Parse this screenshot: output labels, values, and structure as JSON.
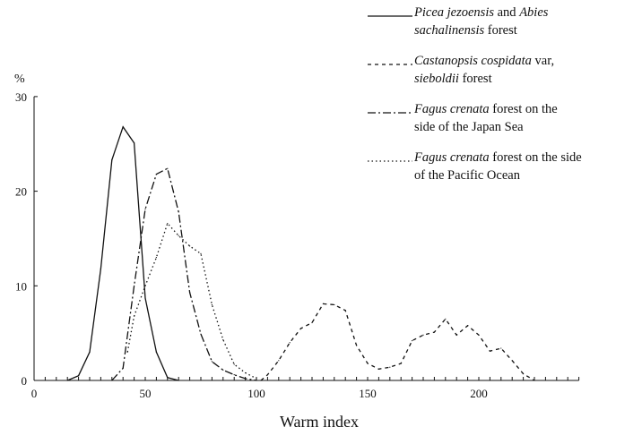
{
  "chart_data": {
    "type": "line",
    "xlabel": "Warm index",
    "ylabel": "%",
    "xlim": [
      0,
      245
    ],
    "ylim": [
      0,
      30
    ],
    "xticks": [
      0,
      50,
      100,
      150,
      200
    ],
    "yticks": [
      0,
      10,
      20,
      30
    ],
    "minor_xtick_step": 5,
    "grid": false,
    "legend_position": "top-right",
    "series": [
      {
        "name": "Picea jezoensis and Abies sachalinensis forest",
        "name_parts": [
          [
            "Picea jezoensis",
            true
          ],
          [
            " and ",
            false
          ],
          [
            "Abies",
            true
          ],
          [
            "sachalinensis",
            true
          ],
          [
            " forest",
            false
          ]
        ],
        "style": "solid",
        "x": [
          15,
          20,
          25,
          30,
          35,
          40,
          45,
          50,
          55,
          60,
          65
        ],
        "y": [
          0,
          0.5,
          3,
          11.8,
          23.3,
          26.8,
          25.1,
          8.7,
          3,
          0.3,
          0
        ]
      },
      {
        "name": "Castanopsis cospidata var, sieboldii forest",
        "name_parts": [
          [
            "Castanopsis cospidata",
            true
          ],
          [
            " var,",
            false
          ],
          [
            "sieboldii",
            true
          ],
          [
            " forest",
            false
          ]
        ],
        "style": "dashed",
        "x": [
          102,
          105,
          110,
          115,
          120,
          125,
          130,
          135,
          140,
          145,
          150,
          155,
          160,
          165,
          170,
          175,
          180,
          185,
          190,
          195,
          200,
          205,
          210,
          215,
          220,
          225
        ],
        "y": [
          0,
          0.6,
          2.1,
          4,
          5.5,
          6.1,
          8.1,
          8,
          7.4,
          3.7,
          1.8,
          1.2,
          1.4,
          1.8,
          4.2,
          4.8,
          5.1,
          6.5,
          4.8,
          5.8,
          4.8,
          3.1,
          3.4,
          2.1,
          0.7,
          0
        ]
      },
      {
        "name": "Fagus crenata forest on the side of the Japan Sea",
        "name_parts": [
          [
            "Fagus crenata",
            true
          ],
          [
            " forest on the",
            false
          ],
          [
            "side of the Japan Sea",
            false
          ]
        ],
        "style": "dash-dot",
        "x": [
          35,
          40,
          45,
          50,
          55,
          60,
          65,
          70,
          75,
          80,
          85,
          90,
          95,
          100
        ],
        "y": [
          0,
          1.3,
          10,
          18.1,
          21.8,
          22.4,
          17.8,
          9.3,
          4.9,
          2,
          1.1,
          0.6,
          0.2,
          0
        ]
      },
      {
        "name": "Fagus crenata forest on the side of the Pacific Ocean",
        "name_parts": [
          [
            "Fagus crenata",
            true
          ],
          [
            " forest on the side",
            false
          ],
          [
            "of the Pacific Ocean",
            false
          ]
        ],
        "style": "dotted",
        "x": [
          42,
          45,
          50,
          55,
          60,
          65,
          70,
          75,
          80,
          85,
          90,
          95,
          100
        ],
        "y": [
          3,
          6.8,
          10,
          13,
          16.6,
          15.3,
          14.2,
          13.4,
          8,
          4.3,
          1.7,
          0.8,
          0.2
        ]
      }
    ]
  }
}
